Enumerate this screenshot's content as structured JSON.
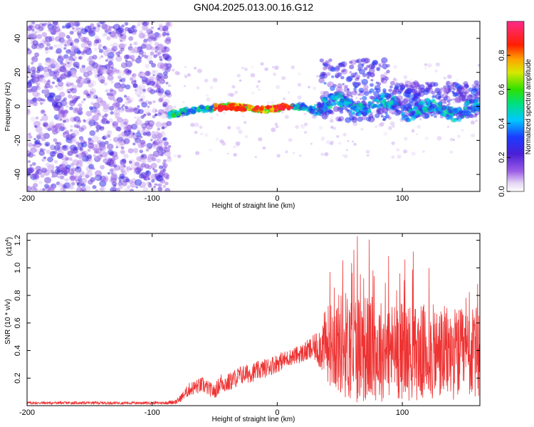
{
  "title": "GN04.2025.013.00.16.G12",
  "chart_data": [
    {
      "type": "heatmap",
      "xlabel": "Height of straight line (km)",
      "ylabel": "Frequency (Hz)",
      "xlim": [
        -200,
        162
      ],
      "ylim": [
        -50,
        50
      ],
      "x_ticks": [
        -200,
        -100,
        0,
        100
      ],
      "x_tick_labels": [
        "-200",
        "-100",
        "0",
        "100"
      ],
      "y_ticks": [
        -40,
        -20,
        0,
        20,
        40
      ],
      "y_tick_labels": [
        "-40",
        "-20",
        "0",
        "20",
        "40"
      ],
      "colorbar": {
        "label": "Normalized spectral amplitude",
        "range": [
          0,
          1
        ],
        "ticks": [
          0.0,
          0.2,
          0.4,
          0.6,
          0.8
        ],
        "tick_labels": [
          "0.0",
          "0.2",
          "0.4",
          "0.6",
          "0.8"
        ],
        "colormap": "rainbow (white-purple-blue-cyan-green-yellow-red-magenta)"
      },
      "features": [
        {
          "name": "noise region",
          "x_range": [
            -200,
            -86
          ],
          "y_range": [
            -50,
            50
          ],
          "amplitude": "low (0.05-0.3)"
        },
        {
          "name": "signal track",
          "x_range": [
            -86,
            162
          ],
          "center_frequency_hz": 0,
          "amplitude": "high near x=-50 to 10 (0.8-0.95)"
        },
        {
          "name": "broadening region",
          "x_range": [
            35,
            120
          ],
          "y_range": [
            -15,
            35
          ],
          "amplitude": "moderate (0.2-0.5)"
        }
      ]
    },
    {
      "type": "line",
      "xlabel": "Height of straight line (km)",
      "ylabel": "SNR (10 * v/v)",
      "y_multiplier_label": "(x10",
      "y_multiplier_exp": "4",
      "y_multiplier_close": ")",
      "xlim": [
        -200,
        162
      ],
      "ylim": [
        0,
        1.25
      ],
      "x_ticks": [
        -200,
        -100,
        0,
        100
      ],
      "x_tick_labels": [
        "-200",
        "-100",
        "0",
        "100"
      ],
      "y_ticks": [
        0.2,
        0.4,
        0.6,
        0.8,
        1.0,
        1.2
      ],
      "y_tick_labels": [
        "0.2",
        "0.4",
        "0.6",
        "0.8",
        "1.0",
        "1.2"
      ],
      "line_color": "#ee3333",
      "envelope_points": {
        "x": [
          -200,
          -90,
          -80,
          -70,
          -60,
          -50,
          -45,
          -40,
          -30,
          -20,
          -10,
          0,
          10,
          20,
          30,
          40,
          50,
          60,
          70,
          80,
          90,
          100,
          110,
          120,
          130,
          140,
          150,
          162
        ],
        "mean": [
          0.02,
          0.02,
          0.03,
          0.12,
          0.15,
          0.1,
          0.17,
          0.16,
          0.22,
          0.24,
          0.27,
          0.31,
          0.35,
          0.38,
          0.42,
          0.45,
          0.45,
          0.43,
          0.42,
          0.4,
          0.4,
          0.4,
          0.38,
          0.38,
          0.38,
          0.38,
          0.37,
          0.38
        ],
        "spread": [
          0.01,
          0.01,
          0.02,
          0.05,
          0.06,
          0.05,
          0.07,
          0.07,
          0.07,
          0.07,
          0.07,
          0.07,
          0.06,
          0.07,
          0.1,
          0.28,
          0.38,
          0.42,
          0.4,
          0.38,
          0.36,
          0.36,
          0.35,
          0.36,
          0.35,
          0.34,
          0.33,
          0.34
        ]
      }
    }
  ]
}
